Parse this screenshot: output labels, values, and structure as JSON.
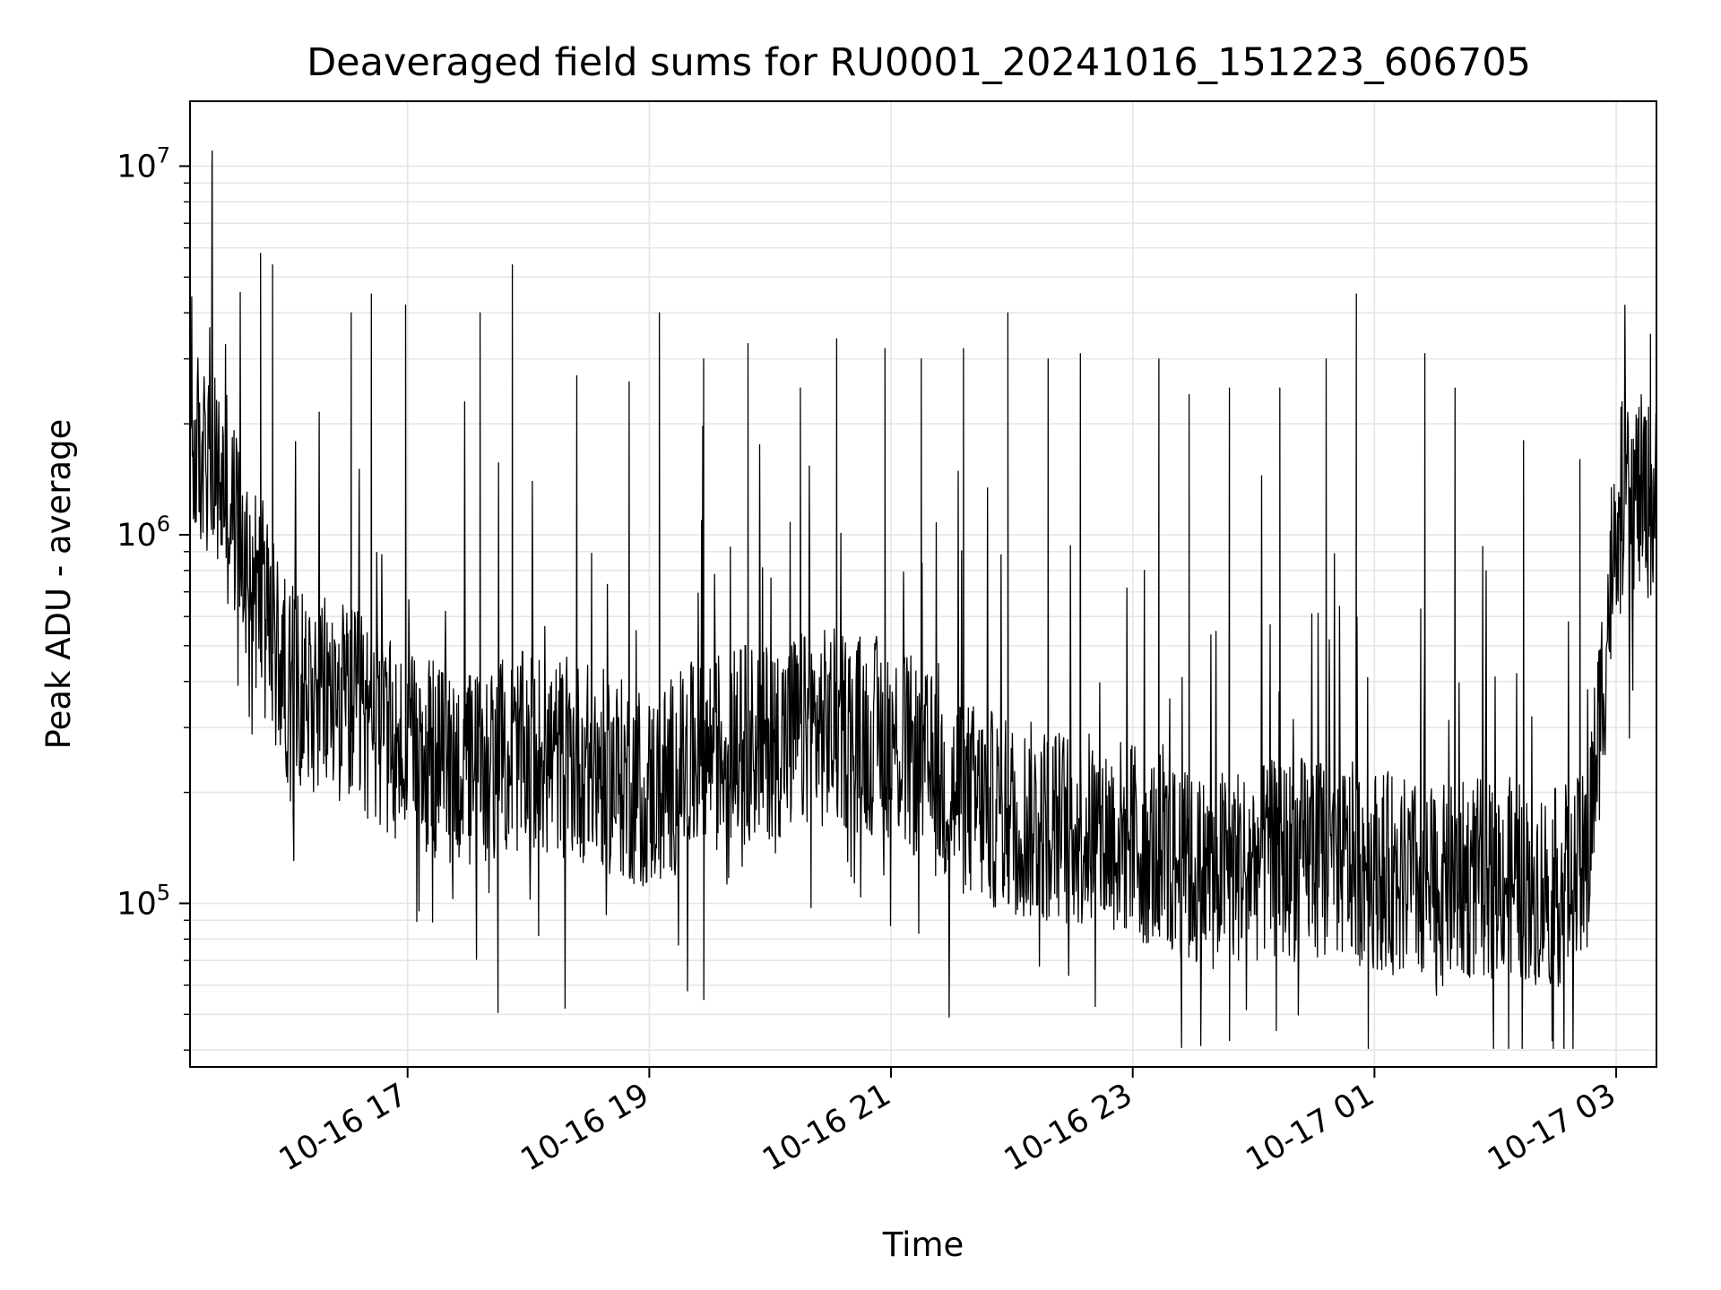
{
  "chart_data": {
    "type": "line",
    "title": "Deaveraged field sums for RU0001_20241016_151223_606705",
    "xlabel": "Time",
    "ylabel": "Peak ADU - average",
    "yscale": "log",
    "ylim": [
      36000,
      15000000
    ],
    "xlim": [
      "2024-10-16 15:12",
      "2024-10-17 03:20"
    ],
    "grid": true,
    "line_color": "#000000",
    "grid_color": "#e6e6e6",
    "x_ticks": [
      {
        "time": "2024-10-16 17:00",
        "label": "10-16 17"
      },
      {
        "time": "2024-10-16 19:00",
        "label": "10-16 19"
      },
      {
        "time": "2024-10-16 21:00",
        "label": "10-16 21"
      },
      {
        "time": "2024-10-16 23:00",
        "label": "10-16 23"
      },
      {
        "time": "2024-10-17 01:00",
        "label": "10-17 01"
      },
      {
        "time": "2024-10-17 03:00",
        "label": "10-17 03"
      }
    ],
    "y_ticks": [
      {
        "value": 100000,
        "base": "10",
        "exp": "5"
      },
      {
        "value": 1000000,
        "base": "10",
        "exp": "6"
      },
      {
        "value": 10000000,
        "base": "10",
        "exp": "7"
      }
    ],
    "series": [
      {
        "x": [
          "2024-10-16 15:12",
          "2024-10-16 15:30",
          "2024-10-16 15:45",
          "2024-10-16 16:00",
          "2024-10-16 16:30",
          "2024-10-16 17:00",
          "2024-10-16 17:30",
          "2024-10-16 18:00",
          "2024-10-16 18:30",
          "2024-10-16 19:00",
          "2024-10-16 19:30",
          "2024-10-16 20:00",
          "2024-10-16 20:30",
          "2024-10-16 21:00",
          "2024-10-16 21:30",
          "2024-10-16 22:00",
          "2024-10-16 22:30",
          "2024-10-16 23:00",
          "2024-10-16 23:30",
          "2024-10-17 00:00",
          "2024-10-17 00:30",
          "2024-10-17 01:00",
          "2024-10-17 01:30",
          "2024-10-17 02:00",
          "2024-10-17 02:30",
          "2024-10-17 02:45",
          "2024-10-17 02:55",
          "2024-10-17 03:00",
          "2024-10-17 03:10",
          "2024-10-17 03:20"
        ],
        "y": [
          1800000,
          1300000,
          700000,
          400000,
          350000,
          250000,
          230000,
          260000,
          240000,
          200000,
          260000,
          280000,
          300000,
          280000,
          200000,
          170000,
          160000,
          150000,
          120000,
          130000,
          135000,
          125000,
          110000,
          120000,
          110000,
          120000,
          500000,
          1200000,
          1300000,
          1200000
        ]
      }
    ],
    "peaks": {
      "x": [
        "2024-10-16 15:23",
        "2024-10-16 15:47",
        "2024-10-16 15:53",
        "2024-10-16 16:32",
        "2024-10-16 16:42",
        "2024-10-16 16:59",
        "2024-10-16 17:36",
        "2024-10-16 17:52",
        "2024-10-16 18:24",
        "2024-10-16 18:50",
        "2024-10-16 19:05",
        "2024-10-16 19:27",
        "2024-10-16 19:49",
        "2024-10-16 20:15",
        "2024-10-16 20:33",
        "2024-10-16 20:57",
        "2024-10-16 21:15",
        "2024-10-16 21:36",
        "2024-10-16 21:58",
        "2024-10-16 22:18",
        "2024-10-16 22:34",
        "2024-10-16 23:13",
        "2024-10-16 23:28",
        "2024-10-16 23:48",
        "2024-10-17 00:13",
        "2024-10-17 00:36",
        "2024-10-17 00:51",
        "2024-10-17 01:25",
        "2024-10-17 01:40",
        "2024-10-17 02:14",
        "2024-10-17 02:42",
        "2024-10-17 03:17"
      ],
      "y": [
        11000000,
        5800000,
        5400000,
        4000000,
        4500000,
        4200000,
        4000000,
        5400000,
        2700000,
        2600000,
        4000000,
        3000000,
        3300000,
        2500000,
        3400000,
        3200000,
        3000000,
        3200000,
        4000000,
        3000000,
        3100000,
        3000000,
        2400000,
        2500000,
        2500000,
        3000000,
        4500000,
        3100000,
        2500000,
        1800000,
        1600000,
        3500000
      ]
    }
  }
}
